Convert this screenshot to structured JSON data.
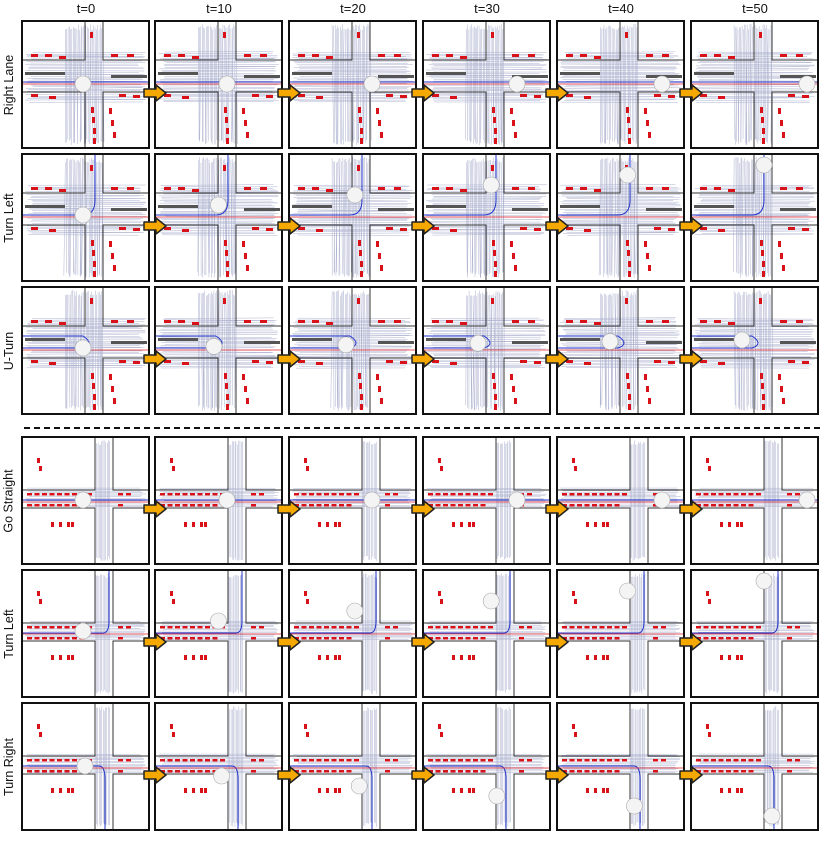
{
  "columns": [
    "t=0",
    "t=10",
    "t=20",
    "t=30",
    "t=40",
    "t=50"
  ],
  "groups": [
    {
      "rows": [
        {
          "label": "Right Lane",
          "trajectory": "right-lane"
        },
        {
          "label": "Turn Left",
          "trajectory": "turn-left"
        },
        {
          "label": "U-Turn",
          "trajectory": "u-turn"
        }
      ]
    },
    {
      "rows": [
        {
          "label": "Go Straight",
          "trajectory": "go-straight"
        },
        {
          "label": "Turn Left",
          "trajectory": "turn-left"
        },
        {
          "label": "Turn Right",
          "trajectory": "turn-right"
        }
      ]
    }
  ],
  "colors": {
    "obstacle": "#d9121a",
    "path_blue": "#2233cc",
    "path_red": "#e0202a",
    "lidar": "#6b74a8",
    "arrow_fill": "#f5a800",
    "arrow_stroke": "#222222",
    "panel_border": "#111111"
  },
  "icons": {
    "step_arrow": "right-arrow-icon"
  }
}
